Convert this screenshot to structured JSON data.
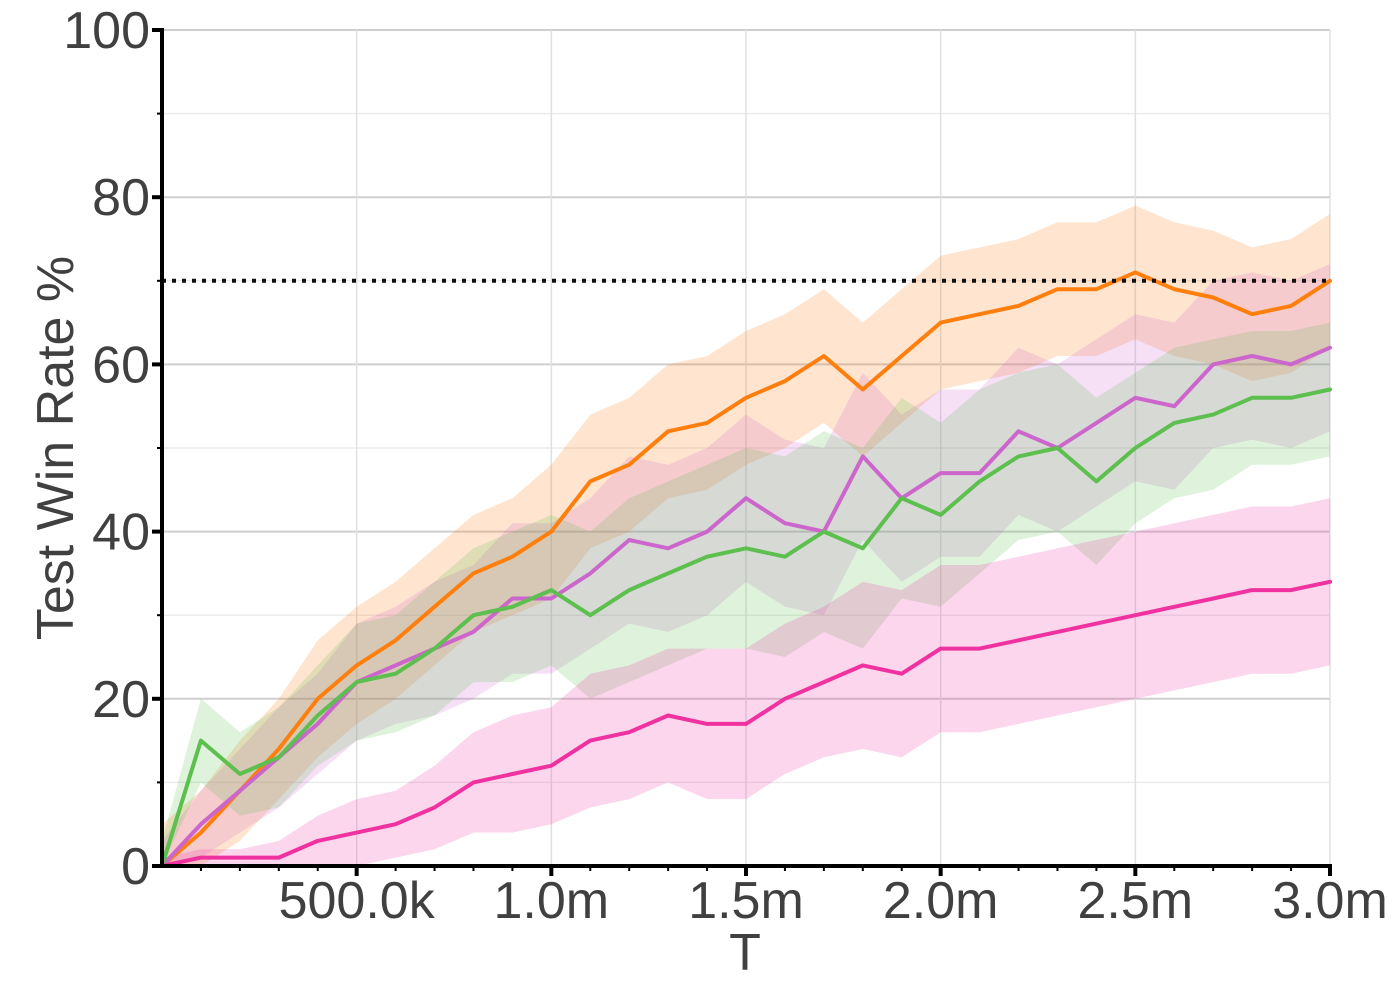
{
  "chart_data": {
    "type": "line",
    "title": "",
    "xlabel": "T",
    "ylabel": "Test Win Rate %",
    "xlim": [
      0,
      3000000
    ],
    "ylim": [
      0,
      100
    ],
    "grid": true,
    "legend": "none",
    "x_ticks": [
      {
        "value": 500000,
        "label": "500.0k"
      },
      {
        "value": 1000000,
        "label": "1.0m"
      },
      {
        "value": 1500000,
        "label": "1.5m"
      },
      {
        "value": 2000000,
        "label": "2.0m"
      },
      {
        "value": 2500000,
        "label": "2.5m"
      },
      {
        "value": 3000000,
        "label": "3.0m"
      }
    ],
    "y_ticks": [
      {
        "value": 0,
        "label": "0"
      },
      {
        "value": 20,
        "label": "20"
      },
      {
        "value": 40,
        "label": "40"
      },
      {
        "value": 60,
        "label": "60"
      },
      {
        "value": 80,
        "label": "80"
      },
      {
        "value": 100,
        "label": "100"
      }
    ],
    "reference_line": {
      "y": 70,
      "style": "dotted",
      "color": "#111111"
    },
    "x": [
      0,
      100000,
      200000,
      300000,
      400000,
      500000,
      600000,
      700000,
      800000,
      900000,
      1000000,
      1100000,
      1200000,
      1300000,
      1400000,
      1500000,
      1600000,
      1700000,
      1800000,
      1900000,
      2000000,
      2100000,
      2200000,
      2300000,
      2400000,
      2500000,
      2600000,
      2700000,
      2800000,
      2900000,
      3000000
    ],
    "series": [
      {
        "color": "#ff7f0e",
        "values": [
          0,
          4,
          9,
          14,
          20,
          24,
          27,
          31,
          35,
          37,
          40,
          46,
          48,
          52,
          53,
          56,
          58,
          61,
          57,
          61,
          65,
          66,
          67,
          69,
          69,
          71,
          69,
          68,
          66,
          67,
          70
        ],
        "band": [
          5,
          5,
          6,
          6,
          7,
          7,
          7,
          7,
          7,
          7,
          8,
          8,
          8,
          8,
          8,
          8,
          8,
          8,
          8,
          8,
          8,
          8,
          8,
          8,
          8,
          8,
          8,
          8,
          8,
          8,
          8
        ]
      },
      {
        "color": "#cc66cc",
        "values": [
          0,
          5,
          9,
          13,
          17,
          22,
          24,
          26,
          28,
          32,
          32,
          35,
          39,
          38,
          40,
          44,
          41,
          40,
          49,
          44,
          47,
          47,
          52,
          50,
          53,
          56,
          55,
          60,
          61,
          60,
          62
        ],
        "band": [
          3,
          4,
          5,
          6,
          6,
          7,
          7,
          8,
          8,
          9,
          9,
          9,
          10,
          10,
          10,
          10,
          10,
          10,
          10,
          10,
          10,
          10,
          10,
          10,
          10,
          10,
          10,
          10,
          10,
          10,
          10
        ]
      },
      {
        "color": "#5cbf4e",
        "values": [
          0,
          15,
          11,
          13,
          18,
          22,
          23,
          26,
          30,
          31,
          33,
          30,
          33,
          35,
          37,
          38,
          37,
          40,
          38,
          44,
          42,
          46,
          49,
          50,
          46,
          50,
          53,
          54,
          56,
          56,
          57
        ],
        "band": [
          3,
          5,
          5,
          6,
          6,
          7,
          7,
          8,
          8,
          9,
          9,
          10,
          11,
          11,
          11,
          12,
          12,
          12,
          12,
          12,
          11,
          11,
          10,
          10,
          10,
          9,
          9,
          9,
          8,
          8,
          8
        ]
      },
      {
        "color": "#f032a0",
        "values": [
          0,
          1,
          1,
          1,
          3,
          4,
          5,
          7,
          10,
          11,
          12,
          15,
          16,
          18,
          17,
          17,
          20,
          22,
          24,
          23,
          26,
          26,
          27,
          28,
          29,
          30,
          31,
          32,
          33,
          33,
          34
        ],
        "band": [
          1,
          1,
          1,
          2,
          3,
          4,
          4,
          5,
          6,
          7,
          7,
          8,
          8,
          8,
          9,
          9,
          9,
          9,
          10,
          10,
          10,
          10,
          10,
          10,
          10,
          10,
          10,
          10,
          10,
          10,
          10
        ]
      }
    ]
  }
}
